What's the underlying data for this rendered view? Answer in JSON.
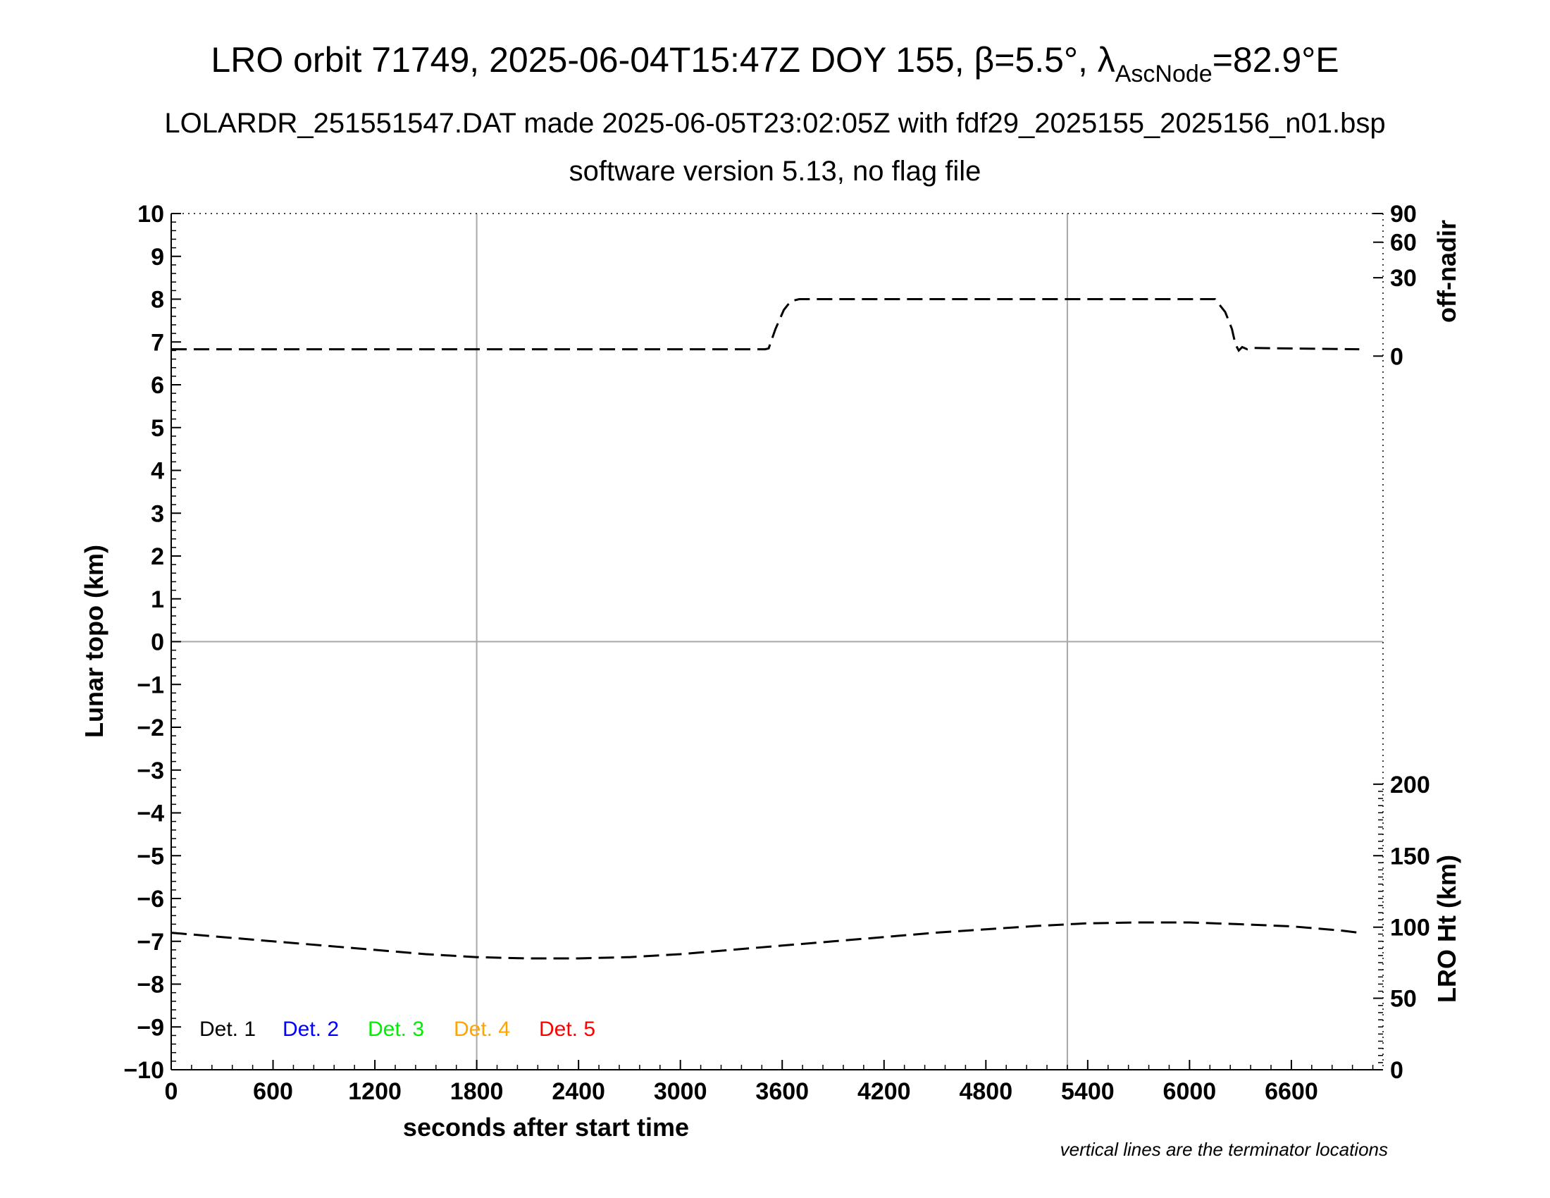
{
  "title": {
    "prefix": "LRO orbit 71749, 2025-06-04T15:47Z DOY 155, ",
    "beta": "β=5.5°, ",
    "lambda": "λ",
    "lambda_sub": "AscNode",
    "lambda_val": "=82.9°E"
  },
  "subtitle1": "LOLARDR_251551547.DAT made 2025-06-05T23:02:05Z with fdf29_2025155_2025156_n01.bsp",
  "subtitle2": "software version 5.13, no flag file",
  "note": "vertical lines are the terminator locations",
  "chart_data": {
    "type": "line",
    "xlabel": "seconds after start time",
    "ylabel": "Lunar topo (km)",
    "y2label_top": "off-nadir",
    "y2label_bottom": "LRO Ht (km)",
    "xlim": [
      0,
      7140
    ],
    "ylim": [
      -10,
      10
    ],
    "x_ticks": [
      0,
      600,
      1200,
      1800,
      2400,
      3000,
      3600,
      4200,
      4800,
      5400,
      6000,
      6600
    ],
    "y_ticks": [
      10,
      9,
      8,
      7,
      6,
      5,
      4,
      3,
      2,
      1,
      0,
      -1,
      -2,
      -3,
      -4,
      -5,
      -6,
      -7,
      -8,
      -9,
      -10
    ],
    "y_tick_labels": [
      "10",
      "9",
      "8",
      "7",
      "6",
      "5",
      "4",
      "3",
      "2",
      "1",
      "0",
      "−1",
      "−2",
      "−3",
      "−4",
      "−5",
      "−6",
      "−7",
      "−8",
      "−9",
      "−10"
    ],
    "offnadir_ticks": [
      {
        "label": "90",
        "topo": 10
      },
      {
        "label": "60",
        "topo": 9.33
      },
      {
        "label": "30",
        "topo": 8.5
      },
      {
        "label": "0",
        "topo": 6.67
      }
    ],
    "height_ticks": [
      {
        "label": "200",
        "topo": -3.33
      },
      {
        "label": "150",
        "topo": -5
      },
      {
        "label": "100",
        "topo": -6.67
      },
      {
        "label": "50",
        "topo": -8.33
      },
      {
        "label": "0",
        "topo": -10
      }
    ],
    "grid": {
      "vertical_x": [
        1800,
        5280
      ],
      "horizontal_y": [
        0
      ]
    },
    "legend_position": "bottom-left",
    "legend": [
      {
        "name": "Det. 1",
        "color": "#000000"
      },
      {
        "name": "Det. 2",
        "color": "#0000ff"
      },
      {
        "name": "Det. 3",
        "color": "#00ee00"
      },
      {
        "name": "Det. 4",
        "color": "#ffa500"
      },
      {
        "name": "Det. 5",
        "color": "#ff0000"
      }
    ],
    "series": [
      {
        "name": "off-nadir",
        "style": "dashed",
        "x": [
          0,
          1000,
          2000,
          3000,
          3500,
          3520,
          3560,
          3610,
          3650,
          3700,
          4500,
          5500,
          6000,
          6150,
          6210,
          6250,
          6270,
          6290,
          6310,
          6340,
          6380,
          7000
        ],
        "y": [
          6.83,
          6.83,
          6.83,
          6.83,
          6.83,
          6.85,
          7.3,
          7.75,
          7.95,
          8.0,
          8.0,
          8.0,
          8.0,
          8.0,
          7.7,
          7.3,
          6.95,
          6.8,
          6.88,
          6.83,
          6.86,
          6.83
        ]
      },
      {
        "name": "LRO Ht",
        "style": "dashed",
        "x": [
          0,
          300,
          600,
          900,
          1200,
          1500,
          1800,
          2100,
          2400,
          2700,
          3000,
          3300,
          3600,
          3900,
          4200,
          4500,
          4800,
          5100,
          5400,
          5700,
          6000,
          6300,
          6600,
          6900,
          7000
        ],
        "y": [
          -6.8,
          -6.9,
          -7.0,
          -7.1,
          -7.2,
          -7.3,
          -7.37,
          -7.4,
          -7.4,
          -7.37,
          -7.3,
          -7.2,
          -7.1,
          -7.0,
          -6.9,
          -6.8,
          -6.72,
          -6.64,
          -6.58,
          -6.56,
          -6.56,
          -6.6,
          -6.65,
          -6.75,
          -6.8
        ]
      }
    ]
  }
}
